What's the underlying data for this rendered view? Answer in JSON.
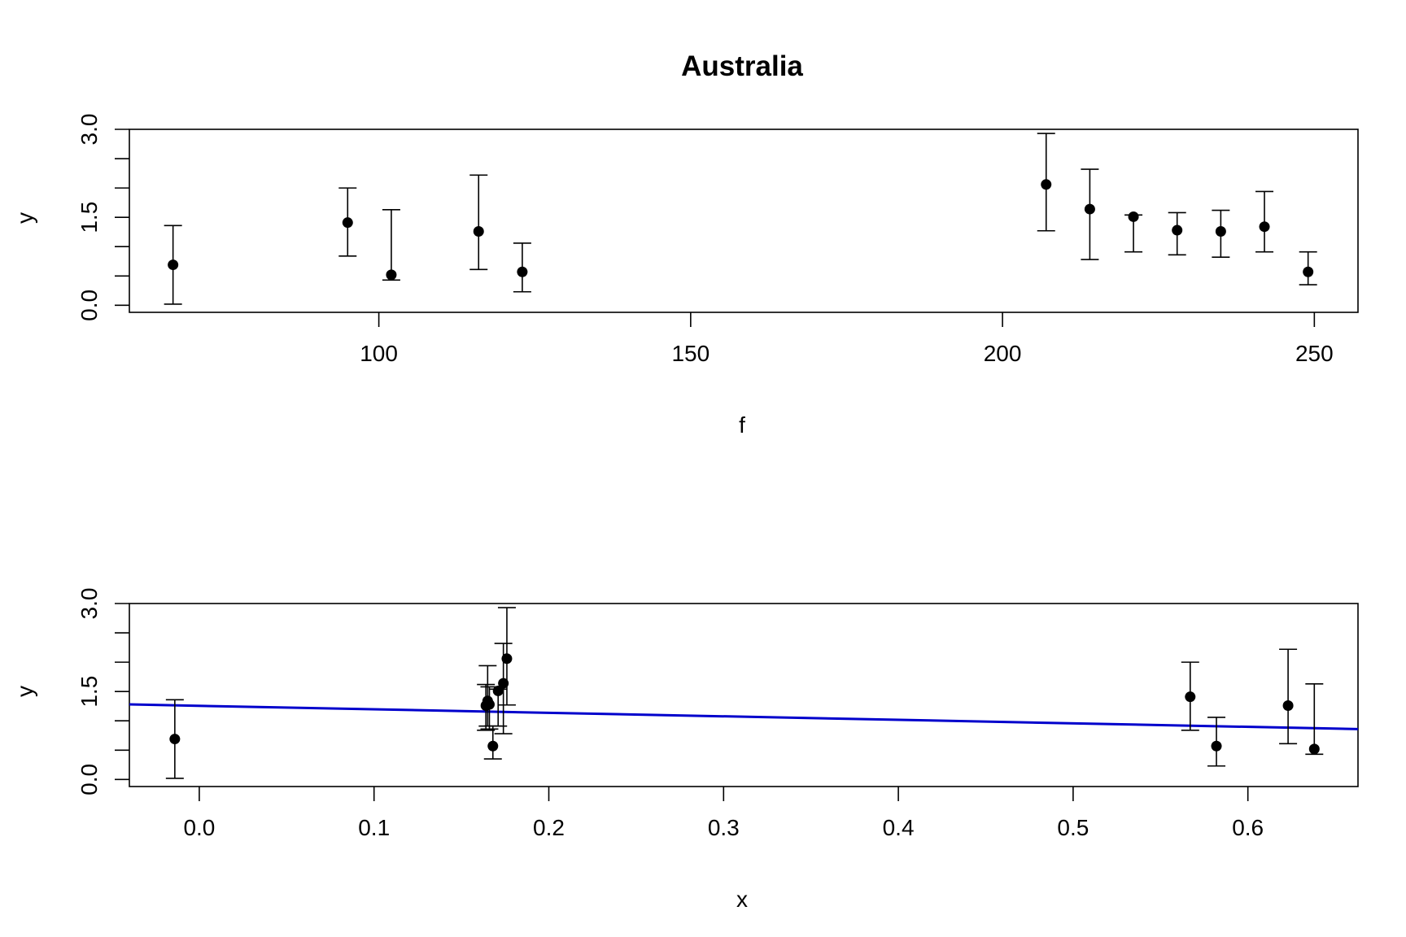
{
  "chart_data": [
    {
      "type": "scatter",
      "title": "Australia",
      "xlabel": "f",
      "ylabel": "y",
      "xlim": [
        60,
        257
      ],
      "ylim": [
        -0.12,
        3.0
      ],
      "xticks": [
        100,
        150,
        200,
        250
      ],
      "xtick_labels": [
        "100",
        "150",
        "200",
        "250"
      ],
      "yticks": [
        0.0,
        0.5,
        1.0,
        1.5,
        2.0,
        2.5,
        3.0
      ],
      "ytick_labels": [
        "0.0",
        "",
        "",
        "1.5",
        "",
        "",
        "3.0"
      ],
      "grid": false,
      "error_bar_color": "#000000",
      "point_color": "#000000",
      "points": [
        {
          "x": 67,
          "y": 0.69,
          "lower": 0.02,
          "upper": 1.36
        },
        {
          "x": 95,
          "y": 1.41,
          "lower": 0.84,
          "upper": 2.0
        },
        {
          "x": 102,
          "y": 0.52,
          "lower": 0.43,
          "upper": 1.63
        },
        {
          "x": 116,
          "y": 1.26,
          "lower": 0.61,
          "upper": 2.22
        },
        {
          "x": 123,
          "y": 0.57,
          "lower": 0.23,
          "upper": 1.06
        },
        {
          "x": 207,
          "y": 2.06,
          "lower": 1.27,
          "upper": 2.93
        },
        {
          "x": 214,
          "y": 1.64,
          "lower": 0.78,
          "upper": 2.32
        },
        {
          "x": 221,
          "y": 1.51,
          "lower": 0.91,
          "upper": 1.54
        },
        {
          "x": 228,
          "y": 1.28,
          "lower": 0.86,
          "upper": 1.58
        },
        {
          "x": 235,
          "y": 1.26,
          "lower": 0.82,
          "upper": 1.62
        },
        {
          "x": 242,
          "y": 1.34,
          "lower": 0.91,
          "upper": 1.94
        },
        {
          "x": 249,
          "y": 0.57,
          "lower": 0.35,
          "upper": 0.91
        }
      ]
    },
    {
      "type": "scatter",
      "title": "",
      "xlabel": "x",
      "ylabel": "y",
      "xlim": [
        -0.04,
        0.663
      ],
      "ylim": [
        -0.12,
        3.0
      ],
      "xticks": [
        0.0,
        0.1,
        0.2,
        0.3,
        0.4,
        0.5,
        0.6
      ],
      "xtick_labels": [
        "0.0",
        "0.1",
        "0.2",
        "0.3",
        "0.4",
        "0.5",
        "0.6"
      ],
      "yticks": [
        0.0,
        0.5,
        1.0,
        1.5,
        2.0,
        2.5,
        3.0
      ],
      "ytick_labels": [
        "0.0",
        "",
        "",
        "1.5",
        "",
        "",
        "3.0"
      ],
      "grid": false,
      "error_bar_color": "#000000",
      "point_color": "#000000",
      "fit_line": {
        "color": "#0000CC",
        "x": [
          -0.04,
          0.663
        ],
        "y": [
          1.28,
          0.86
        ]
      },
      "points": [
        {
          "x": -0.014,
          "y": 0.69,
          "lower": 0.02,
          "upper": 1.36
        },
        {
          "x": 0.164,
          "y": 1.26,
          "lower": 0.84,
          "upper": 1.62
        },
        {
          "x": 0.165,
          "y": 1.34,
          "lower": 0.91,
          "upper": 1.94
        },
        {
          "x": 0.166,
          "y": 1.28,
          "lower": 0.86,
          "upper": 1.58
        },
        {
          "x": 0.168,
          "y": 0.57,
          "lower": 0.35,
          "upper": 0.91
        },
        {
          "x": 0.171,
          "y": 1.51,
          "lower": 0.91,
          "upper": 1.54
        },
        {
          "x": 0.174,
          "y": 1.64,
          "lower": 0.78,
          "upper": 2.32
        },
        {
          "x": 0.176,
          "y": 2.06,
          "lower": 1.27,
          "upper": 2.93
        },
        {
          "x": 0.567,
          "y": 1.41,
          "lower": 0.84,
          "upper": 2.0
        },
        {
          "x": 0.582,
          "y": 0.57,
          "lower": 0.23,
          "upper": 1.06
        },
        {
          "x": 0.623,
          "y": 1.26,
          "lower": 0.61,
          "upper": 2.22
        },
        {
          "x": 0.638,
          "y": 0.52,
          "lower": 0.43,
          "upper": 1.63
        }
      ]
    }
  ]
}
